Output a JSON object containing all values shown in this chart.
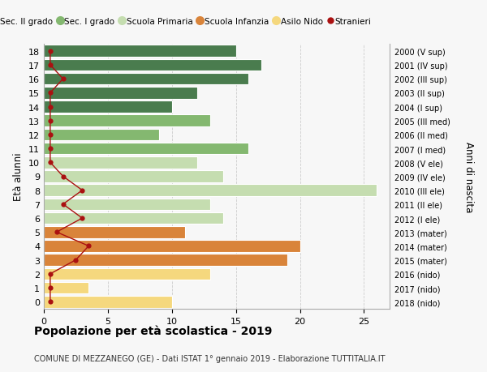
{
  "ages": [
    18,
    17,
    16,
    15,
    14,
    13,
    12,
    11,
    10,
    9,
    8,
    7,
    6,
    5,
    4,
    3,
    2,
    1,
    0
  ],
  "years": [
    "2000 (V sup)",
    "2001 (IV sup)",
    "2002 (III sup)",
    "2003 (II sup)",
    "2004 (I sup)",
    "2005 (III med)",
    "2006 (II med)",
    "2007 (I med)",
    "2008 (V ele)",
    "2009 (IV ele)",
    "2010 (III ele)",
    "2011 (II ele)",
    "2012 (I ele)",
    "2013 (mater)",
    "2014 (mater)",
    "2015 (mater)",
    "2016 (nido)",
    "2017 (nido)",
    "2018 (nido)"
  ],
  "bar_values": [
    15,
    17,
    16,
    12,
    10,
    13,
    9,
    16,
    12,
    14,
    26,
    13,
    14,
    11,
    20,
    19,
    13,
    3.5,
    10
  ],
  "bar_colors": [
    "#4a7c4e",
    "#4a7c4e",
    "#4a7c4e",
    "#4a7c4e",
    "#4a7c4e",
    "#84b870",
    "#84b870",
    "#84b870",
    "#c5ddb0",
    "#c5ddb0",
    "#c5ddb0",
    "#c5ddb0",
    "#c5ddb0",
    "#d9843a",
    "#d9843a",
    "#d9843a",
    "#f5d87e",
    "#f5d87e",
    "#f5d87e"
  ],
  "stranieri_values": [
    0.5,
    0.5,
    1.5,
    0.5,
    0.5,
    0.5,
    0.5,
    0.5,
    0.5,
    1.5,
    3.0,
    1.5,
    3.0,
    1.0,
    3.5,
    2.5,
    0.5,
    0.5,
    0.5
  ],
  "stranieri_color": "#aa1111",
  "title": "Popolazione per età scolastica - 2019",
  "subtitle": "COMUNE DI MEZZANEGO (GE) - Dati ISTAT 1° gennaio 2019 - Elaborazione TUTTITALIA.IT",
  "ylabel": "Età alunni",
  "right_label": "Anni di nascita",
  "xlim": [
    0,
    27
  ],
  "xticks": [
    0,
    5,
    10,
    15,
    20,
    25
  ],
  "legend_labels": [
    "Sec. II grado",
    "Sec. I grado",
    "Scuola Primaria",
    "Scuola Infanzia",
    "Asilo Nido",
    "Stranieri"
  ],
  "legend_colors": [
    "#4a7c4e",
    "#84b870",
    "#c5ddb0",
    "#d9843a",
    "#f5d87e",
    "#aa1111"
  ],
  "background_color": "#f7f7f7",
  "grid_color": "#cccccc"
}
